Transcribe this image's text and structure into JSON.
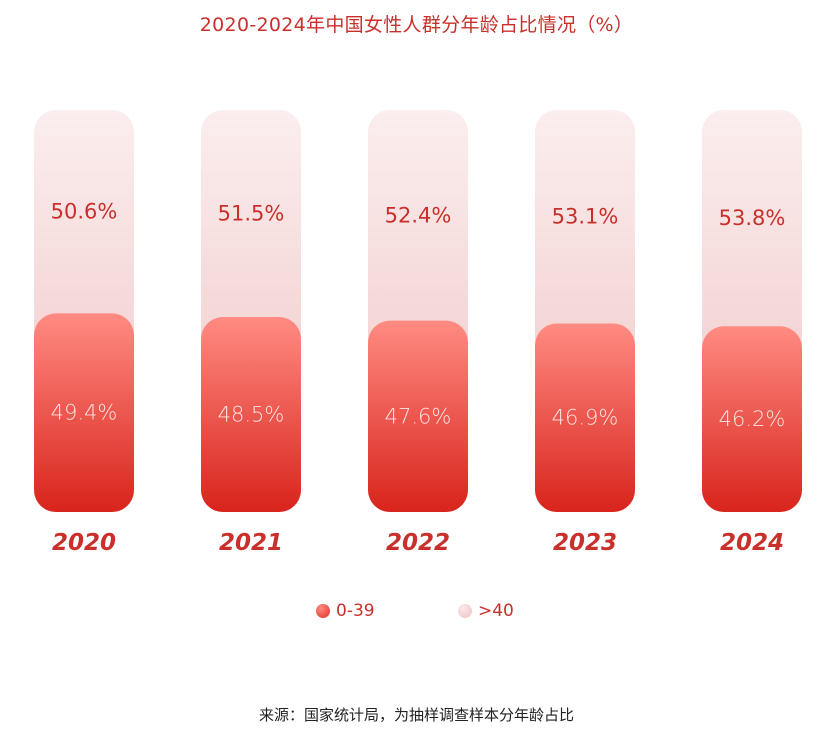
{
  "chart_data": {
    "type": "bar",
    "stacked": true,
    "normalized": true,
    "title": "2020-2024年中国女性人群分年龄占比情况（%）",
    "categories": [
      "2020",
      "2021",
      "2022",
      "2023",
      "2024"
    ],
    "series": [
      {
        "name": "0-39",
        "values": [
          49.4,
          48.5,
          47.6,
          46.9,
          46.2
        ],
        "labels": [
          "49.4%",
          "48.5%",
          "47.6%",
          "46.9%",
          "46.2%"
        ],
        "color": "#e0302a"
      },
      {
        "name": ">40",
        "values": [
          50.6,
          51.5,
          52.4,
          53.1,
          53.8
        ],
        "labels": [
          "50.6%",
          "51.5%",
          "52.4%",
          "53.1%",
          "53.8%"
        ],
        "color": "#f6d7d7"
      }
    ],
    "ylim": [
      0,
      100
    ],
    "legend_position": "bottom",
    "grid": false,
    "source": "来源：国家统计局，为抽样调查样本分年龄占比"
  },
  "colors": {
    "accent": "#c9302c",
    "young_top": "#ff8a80",
    "young_bottom": "#d9251d",
    "old_top": "#fbe9e9",
    "old_bottom": "#efc4c4"
  }
}
